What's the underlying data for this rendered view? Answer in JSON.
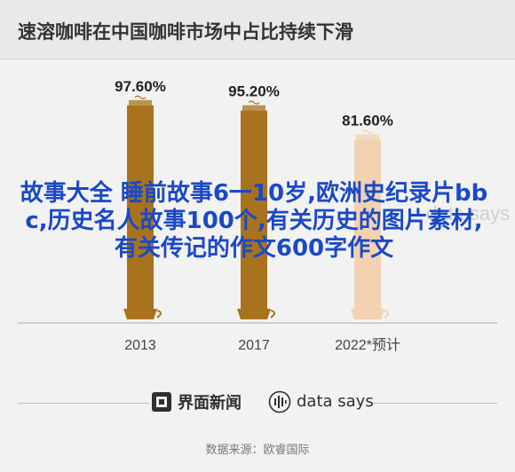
{
  "header": {
    "title": "速溶咖啡在中国咖啡市场中占比持续下滑"
  },
  "chart_data": {
    "type": "bar",
    "categories": [
      "2013",
      "2017",
      "2022*预计"
    ],
    "values": [
      97.6,
      95.2,
      81.6
    ],
    "data_labels": [
      "97.60%",
      "95.20%",
      "81.60%"
    ],
    "ylim": [
      0,
      100
    ],
    "colors": [
      "#a8731c",
      "#a8731c",
      "#f2d2b1"
    ]
  },
  "overlay": {
    "text": "故事大全 睡前故事6一10岁,欧洲史纪录片bbc,历史名人故事100个,有关历史的图片素材,有关传记的作文600字作文"
  },
  "footer": {
    "brand_1": "界面新闻",
    "brand_2": "data says",
    "watermark": "data says",
    "source": "数据来源：欧睿国际"
  }
}
